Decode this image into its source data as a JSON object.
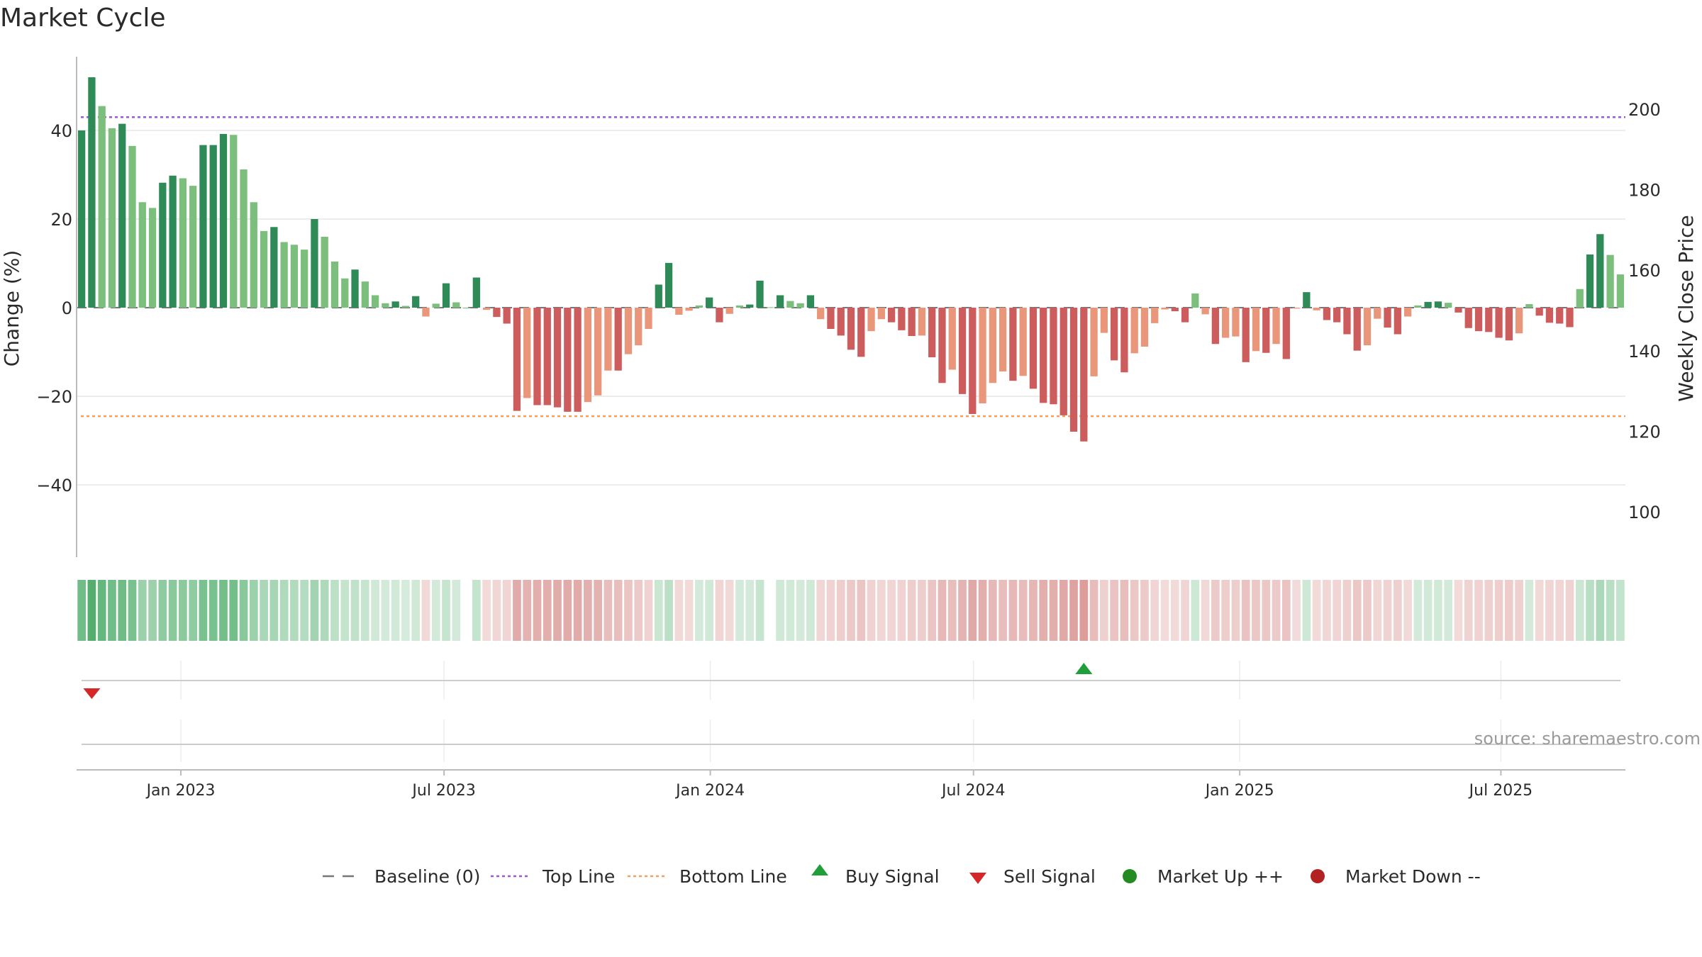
{
  "chart_data": {
    "type": "bar",
    "title": "Market Cycle",
    "ylabel_left": "Change (%)",
    "ylabel_right": "Weekly Close Price",
    "ylim": [
      -57,
      57
    ],
    "right_ylim": [
      88,
      214
    ],
    "left_ticks": [
      "40",
      "20",
      "0",
      "−20",
      "−40"
    ],
    "left_tick_values": [
      40,
      20,
      0,
      -20,
      -40
    ],
    "right_ticks": [
      "200",
      "180",
      "160",
      "140",
      "120",
      "100"
    ],
    "right_tick_values": [
      200,
      180,
      160,
      140,
      120,
      100
    ],
    "x_ticks": [
      "Jan 2023",
      "Jul 2023",
      "Jan 2024",
      "Jul 2024",
      "Jan 2025",
      "Jul 2025"
    ],
    "x_tick_positions": [
      10.3,
      36.3,
      62.6,
      88.6,
      114.9,
      140.7
    ],
    "top_line": 43,
    "bottom_line": -24.5,
    "values": [
      40,
      52,
      45.5,
      40.5,
      41.5,
      36.5,
      23.8,
      22.5,
      28.2,
      29.8,
      29.2,
      27.5,
      36.7,
      36.7,
      39.2,
      39,
      31.2,
      23.8,
      17.3,
      18.2,
      14.8,
      14.2,
      13.1,
      20,
      16,
      10.4,
      6.6,
      8.6,
      5.9,
      2.8,
      1,
      1.4,
      0.4,
      2.6,
      -2,
      0.9,
      5.5,
      1.2,
      0,
      6.8,
      -0.5,
      -2.1,
      -3.6,
      -23.3,
      -20.4,
      -22,
      -22,
      -22.5,
      -23.5,
      -23.5,
      -21.3,
      -19.8,
      -14.2,
      -14.2,
      -10.5,
      -8.5,
      -4.8,
      5.2,
      10.1,
      -1.6,
      -0.7,
      0.5,
      2.3,
      -3.3,
      -1.4,
      0.5,
      0.7,
      6.1,
      0.1,
      2.8,
      1.5,
      1,
      2.8,
      -2.6,
      -4.8,
      -6.3,
      -9.5,
      -11.1,
      -5.3,
      -2.6,
      -3.3,
      -5.1,
      -6.4,
      -6.3,
      -11.2,
      -17,
      -14,
      -19.5,
      -24,
      -21.6,
      -17,
      -14.4,
      -16.5,
      -15.4,
      -18.3,
      -21.5,
      -21.8,
      -24.3,
      -28,
      -30.2,
      -15.5,
      -5.7,
      -11.9,
      -14.6,
      -10.3,
      -8.8,
      -3.5,
      -0.4,
      -0.8,
      -3.3,
      3.2,
      -1.5,
      -8.2,
      -6.8,
      -6.5,
      -12.3,
      -9.8,
      -10.2,
      -8.2,
      -11.6,
      -0.2,
      3.5,
      -0.6,
      -2.8,
      -3.3,
      -6,
      -9.7,
      -8.5,
      -2.5,
      -4.5,
      -6,
      -2,
      0.5,
      1.3,
      1.4,
      1.1,
      -1.1,
      -4.6,
      -5.3,
      -5.5,
      -6.8,
      -7.4,
      -5.8,
      0.8,
      -1.8,
      -3.4,
      -3.6,
      -4.4,
      4.2,
      12,
      16.6,
      11.9,
      7.5
    ],
    "bar_colors": {
      "up_strong": "#2e8b57",
      "up_weak": "#7cbf7c",
      "down_strong": "#cd5c5c",
      "down_weak": "#e9967a"
    },
    "strip_colors": {
      "up": "#2e9e4f",
      "down": "#c0504d"
    },
    "signals": {
      "buy_week": 99,
      "sell_week": 1
    },
    "series_colors": {
      "baseline": "#777777",
      "top_line": "#9b59d0",
      "bottom_line": "#f0a060",
      "buy": "#1f9e3a",
      "sell": "#d62728",
      "market_up": "#228b22",
      "market_down": "#b22222"
    },
    "legend": {
      "placement": "bottom",
      "items": [
        {
          "label": "Baseline (0)",
          "symbol": "dash-gray"
        },
        {
          "label": "Top Line",
          "symbol": "dot-purple"
        },
        {
          "label": "Bottom Line",
          "symbol": "dot-orange"
        },
        {
          "label": "Buy Signal",
          "symbol": "triangle-up-green"
        },
        {
          "label": "Sell Signal",
          "symbol": "triangle-down-red"
        },
        {
          "label": "Market Up ++",
          "symbol": "circle-green"
        },
        {
          "label": "Market Down --",
          "symbol": "circle-red"
        }
      ]
    },
    "source": "source: sharemaestro.com",
    "grid": true
  }
}
